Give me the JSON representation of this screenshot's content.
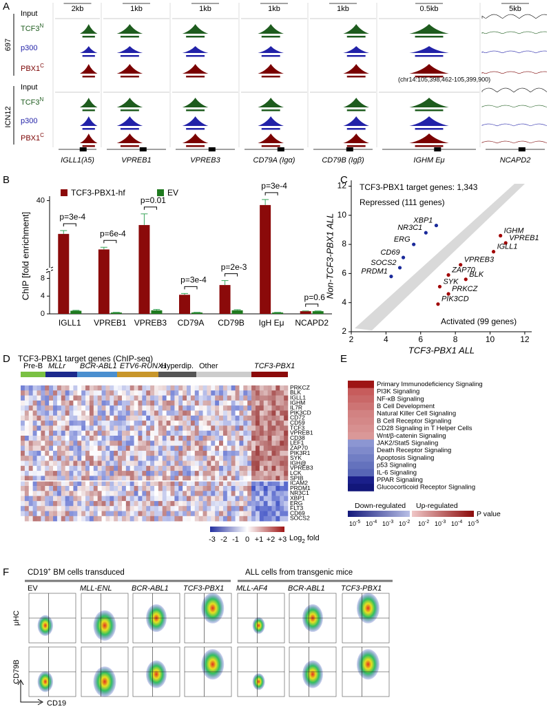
{
  "panel_letters": [
    "A",
    "B",
    "C",
    "D",
    "E",
    "F"
  ],
  "panel_a": {
    "scale_bars": [
      "2kb",
      "1kb",
      "1kb",
      "1kb",
      "1kb",
      "0.5kb",
      "5kb"
    ],
    "cell_lines": [
      "697",
      "ICN12"
    ],
    "tracks": [
      {
        "name": "Input",
        "color": "#000000"
      },
      {
        "name": "TCF3",
        "sup": "N",
        "color": "#1e5c1e"
      },
      {
        "name": "p300",
        "color": "#2222a8"
      },
      {
        "name": "PBX1",
        "sup": "C",
        "color": "#7a0000"
      }
    ],
    "coordinates": "(chr14:105,398,462-105,399,900)",
    "genes": [
      "IGLL1(λ5)",
      "VPREB1",
      "VPREB3",
      "CD79A (Igα)",
      "CD79B (Igβ)",
      "IGHM Eμ",
      "NCAPD2"
    ]
  },
  "chart_data": [
    {
      "type": "bar",
      "ylabel": "ChIP [fold enrichment]",
      "categories": [
        "IGLL1",
        "VPREB1",
        "VPREB3",
        "CD79A",
        "CD79B",
        "IgH Eμ",
        "NCAPD2"
      ],
      "series": [
        {
          "name": "TCF3-PBX1-hf",
          "color": "#8b0a0a",
          "values": [
            25,
            18,
            29,
            4.3,
            6.5,
            38,
            0.6
          ],
          "errors": [
            1.5,
            1,
            5,
            0.3,
            1,
            2.5,
            0.05
          ]
        },
        {
          "name": "EV",
          "color": "#1f7a1f",
          "values": [
            0.7,
            0.3,
            0.8,
            0.3,
            0.8,
            0.3,
            0.6
          ],
          "errors": [
            0.1,
            0.05,
            0.2,
            0.05,
            0.15,
            0.05,
            0.05
          ]
        }
      ],
      "annotations": [
        "p=3e-4",
        "p=6e-4",
        "p=0.01",
        "p=3e-4",
        "p=2e-3",
        "p=3e-4",
        "p=0.6"
      ],
      "ylim": [
        0,
        42
      ],
      "axis_break": [
        9,
        11
      ],
      "yticks": [
        0,
        4,
        8,
        40
      ]
    },
    {
      "type": "scatter",
      "xlabel": "TCF3-PBX1 ALL",
      "ylabel": "Non-TCF3-PBX1 ALL",
      "annotations": [
        "TCF3-PBX1 target genes: 1,343",
        "Repressed (111 genes)",
        "Activated (99 genes)"
      ],
      "series": [
        {
          "color": "#a00000",
          "labels": [
            "IGHM",
            "VPREB1",
            "IGLL1",
            "VPREB3",
            "ZAP70",
            "BLK",
            "SYK",
            "PRKCZ",
            "PIK3CD"
          ],
          "x": [
            10.6,
            10.9,
            10.2,
            8.3,
            7.6,
            8.6,
            7.1,
            7.6,
            7.0
          ],
          "values": [
            8.6,
            8.1,
            7.5,
            6.6,
            5.9,
            5.6,
            5.1,
            4.6,
            3.9
          ]
        },
        {
          "color": "#1a2a9a",
          "labels": [
            "XBP1",
            "NR3C1",
            "ERG",
            "CD69",
            "SOCS2",
            "PRDM1"
          ],
          "x": [
            6.9,
            6.3,
            5.6,
            5.0,
            4.8,
            4.3
          ],
          "values": [
            9.3,
            8.8,
            8.0,
            7.1,
            6.4,
            5.8
          ]
        }
      ],
      "xlim": [
        2,
        12.4
      ],
      "ylim": [
        2,
        12.4
      ],
      "xticks": [
        2,
        4,
        6,
        8,
        10,
        12
      ],
      "yticks": [
        2,
        4,
        6,
        8,
        10,
        12
      ]
    }
  ],
  "panel_d": {
    "title": "TCF3-PBX1 target genes (ChIP-seq)",
    "groups": [
      {
        "name": "Pre-B",
        "color": "#7ac143"
      },
      {
        "name": "MLLr",
        "color": "#1c2a8c"
      },
      {
        "name": "BCR-ABL1",
        "color": "#4a8fcf"
      },
      {
        "name": "ETV6-RUNX1",
        "color": "#c8962a"
      },
      {
        "name": "Hyperdip.",
        "color": "#555555"
      },
      {
        "name": "Other",
        "color": "#cccccc"
      },
      {
        "name": "TCF3-PBX1",
        "color": "#8b0a0a"
      }
    ],
    "up_genes": [
      "PRKCZ",
      "BLK",
      "IGLL1",
      "IGHM",
      "IL7R",
      "PIK3CD",
      "CD72",
      "CD59",
      "TCF3",
      "VPREB1",
      "CD38",
      "LEF1",
      "ZAP70",
      "PIK3R1",
      "SYK",
      "IGH@",
      "VPREB3",
      "LCK",
      "SPIB"
    ],
    "down_genes": [
      "ICAM2",
      "PRDM1",
      "NR3C1",
      "XBP1",
      "ERG",
      "FLT3",
      "CD69",
      "SOCS2"
    ],
    "colorbar_ticks": [
      "-3",
      "-2",
      "-1",
      "0",
      "+1",
      "+2",
      "+3"
    ],
    "colorbar_label": {
      "text": "Log",
      "sub": "2",
      "rest": " fold"
    }
  },
  "panel_e": {
    "pathways": [
      {
        "name": "Primary Immunodeficiency Signaling",
        "color": "#9e1515",
        "label_color": "#000000"
      },
      {
        "name": "PI3K Signaling",
        "color": "#c75c5c",
        "label_color": "#8b0a0a"
      },
      {
        "name": "NF-κB Signaling",
        "color": "#c96868",
        "label_color": "#8b0a0a"
      },
      {
        "name": "B Cell Development",
        "color": "#cd7474",
        "label_color": "#8b0a0a"
      },
      {
        "name": "Natural Killer Cell Signaling",
        "color": "#d28282",
        "label_color": "#000000"
      },
      {
        "name": "B Cell Receptor Signaling",
        "color": "#d48888",
        "label_color": "#8b0a0a"
      },
      {
        "name": "CD28 Signaling in T Helper Cells",
        "color": "#d79090",
        "label_color": "#000000"
      },
      {
        "name": "Wnt/β-catenin Signaling",
        "color": "#da9898",
        "label_color": "#000000"
      },
      {
        "name": "JAK2/Stat5 Signaling",
        "color": "#8c96d2",
        "label_color": "#1a2a9a"
      },
      {
        "name": "Death Receptor Signaling",
        "color": "#7f8acb",
        "label_color": "#000000"
      },
      {
        "name": "Apoptosis Signaling",
        "color": "#717ec4",
        "label_color": "#000000"
      },
      {
        "name": "p53 Signaling",
        "color": "#6472bd",
        "label_color": "#000000"
      },
      {
        "name": "IL-6 Signaling",
        "color": "#5766b6",
        "label_color": "#000000"
      },
      {
        "name": "PPAR Signaling",
        "color": "#1a1f8a",
        "label_color": "#000000"
      },
      {
        "name": "Glucocorticoid Receptor Signaling",
        "color": "#12177a",
        "label_color": "#000000"
      }
    ],
    "legend": [
      "Down-regulated",
      "Up-regulated",
      "P value"
    ],
    "scale_ticks": [
      {
        "base": "10",
        "exp": "-5"
      },
      {
        "base": "10",
        "exp": "-4"
      },
      {
        "base": "10",
        "exp": "-3"
      },
      {
        "base": "10",
        "exp": "-2"
      },
      {
        "base": "10",
        "exp": "-2"
      },
      {
        "base": "10",
        "exp": "-3"
      },
      {
        "base": "10",
        "exp": "-4"
      },
      {
        "base": "10",
        "exp": "-5"
      }
    ]
  },
  "panel_f": {
    "headings": [
      {
        "text": "CD19",
        "sup": "+",
        "rest": " BM cells transduced"
      },
      {
        "text": "ALL cells from transgenic mice"
      }
    ],
    "columns": [
      "EV",
      "MLL-ENL",
      "BCR-ABL1",
      "TCF3-PBX1",
      "MLL-AF4",
      "BCR-ABL1",
      "TCF3-PBX1"
    ],
    "rows": [
      "μHC",
      "CD79B"
    ],
    "xlabel": "CD19"
  }
}
